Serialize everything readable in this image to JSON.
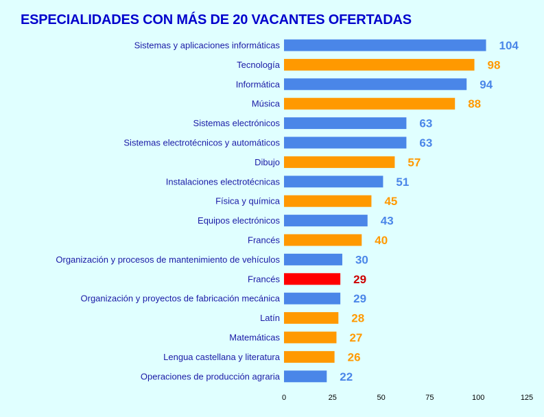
{
  "chart_data": {
    "type": "bar",
    "orientation": "horizontal",
    "title": "ESPECIALIDADES CON MÁS DE 20 VACANTES OFERTADAS",
    "xlabel": "",
    "ylabel": "",
    "xlim": [
      0,
      125
    ],
    "xticks": [
      0,
      25,
      50,
      75,
      100,
      125
    ],
    "grid": false,
    "legend": "none",
    "categories": [
      "Sistemas y aplicaciones informáticas",
      "Tecnología",
      "Informática",
      "Música",
      "Sistemas electrónicos",
      "Sistemas electrotécnicos y automáticos",
      "Dibujo",
      "Instalaciones electrotécnicas",
      "Física y química",
      "Equipos electrónicos",
      "Francés",
      "Organización y procesos de mantenimiento de vehículos",
      "Francés",
      "Organización y proyectos de fabricación mecánica",
      "Latín",
      "Matemáticas",
      "Lengua castellana y literatura",
      "Operaciones de producción agraria"
    ],
    "values": [
      104,
      98,
      94,
      88,
      63,
      63,
      57,
      51,
      45,
      43,
      40,
      30,
      29,
      29,
      28,
      27,
      26,
      22
    ],
    "bar_colors": [
      "#4a86e8",
      "#ff9900",
      "#4a86e8",
      "#ff9900",
      "#4a86e8",
      "#4a86e8",
      "#ff9900",
      "#4a86e8",
      "#ff9900",
      "#4a86e8",
      "#ff9900",
      "#4a86e8",
      "#ff0000",
      "#4a86e8",
      "#ff9900",
      "#ff9900",
      "#ff9900",
      "#4a86e8"
    ],
    "label_colors": [
      "#4a86e8",
      "#ff9900",
      "#4a86e8",
      "#ff9900",
      "#4a86e8",
      "#4a86e8",
      "#ff9900",
      "#4a86e8",
      "#ff9900",
      "#4a86e8",
      "#ff9900",
      "#4a86e8",
      "#cc0000",
      "#4a86e8",
      "#ff9900",
      "#ff9900",
      "#ff9900",
      "#4a86e8"
    ]
  },
  "colors": {
    "background": "#e0ffff",
    "title": "#0000cc",
    "category_text": "#1a1aa6"
  }
}
